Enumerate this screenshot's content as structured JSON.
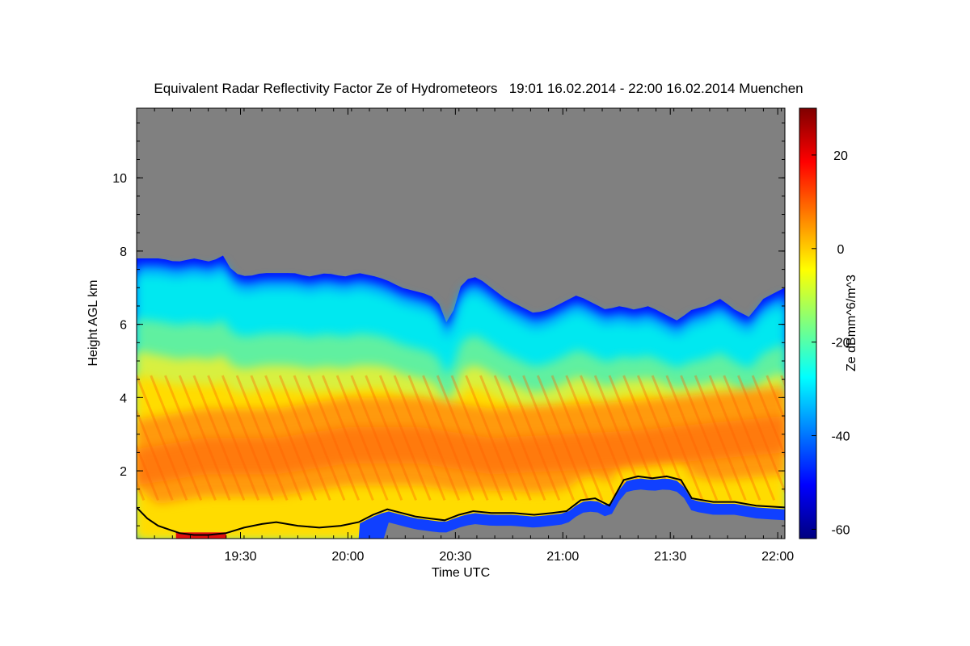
{
  "chart_data": {
    "type": "heatmap",
    "title": "Equivalent Radar Reflectivity Factor Ze of Hydrometeors   19:01 16.02.2014 - 22:00 16.02.2014 Muenchen",
    "xlabel": "Time UTC",
    "ylabel": "Height AGL km",
    "colorbar_label": "Ze dBmm^6/m^3",
    "x_range_minutes_utc": [
      1141,
      1322
    ],
    "y_range_km": [
      0.15,
      11.9
    ],
    "clim": [
      -62,
      30
    ],
    "x_ticks": [
      {
        "value": 1170,
        "label": "19:30"
      },
      {
        "value": 1200,
        "label": "20:00"
      },
      {
        "value": 1230,
        "label": "20:30"
      },
      {
        "value": 1260,
        "label": "21:00"
      },
      {
        "value": 1290,
        "label": "21:30"
      },
      {
        "value": 1320,
        "label": "22:00"
      }
    ],
    "y_ticks": [
      {
        "value": 2,
        "label": "2"
      },
      {
        "value": 4,
        "label": "4"
      },
      {
        "value": 6,
        "label": "6"
      },
      {
        "value": 8,
        "label": "8"
      },
      {
        "value": 10,
        "label": "10"
      }
    ],
    "colorbar_ticks": [
      {
        "value": 20,
        "label": "20"
      },
      {
        "value": 0,
        "label": "0"
      },
      {
        "value": -20,
        "label": "-20"
      },
      {
        "value": -40,
        "label": "-40"
      },
      {
        "value": -60,
        "label": "-60"
      }
    ],
    "colormap": [
      "#00007f",
      "#0000ff",
      "#007fff",
      "#00ffff",
      "#7fff7f",
      "#ffff00",
      "#ff7f00",
      "#ff0000",
      "#7f0000"
    ],
    "missing_color": "#808080",
    "echo_top_km": [
      [
        1141,
        7.8
      ],
      [
        1148,
        7.8
      ],
      [
        1152,
        7.7
      ],
      [
        1157,
        7.8
      ],
      [
        1162,
        7.7
      ],
      [
        1165,
        7.9
      ],
      [
        1168,
        7.4
      ],
      [
        1172,
        7.3
      ],
      [
        1176,
        7.4
      ],
      [
        1180,
        7.4
      ],
      [
        1185,
        7.4
      ],
      [
        1189,
        7.3
      ],
      [
        1194,
        7.4
      ],
      [
        1199,
        7.3
      ],
      [
        1203,
        7.4
      ],
      [
        1208,
        7.3
      ],
      [
        1211,
        7.2
      ],
      [
        1215,
        7.0
      ],
      [
        1219,
        6.9
      ],
      [
        1223,
        6.8
      ],
      [
        1226,
        6.5
      ],
      [
        1228,
        5.9
      ],
      [
        1232,
        7.2
      ],
      [
        1236,
        7.3
      ],
      [
        1240,
        7.0
      ],
      [
        1244,
        6.7
      ],
      [
        1248,
        6.5
      ],
      [
        1252,
        6.3
      ],
      [
        1256,
        6.4
      ],
      [
        1260,
        6.6
      ],
      [
        1264,
        6.8
      ],
      [
        1268,
        6.6
      ],
      [
        1272,
        6.4
      ],
      [
        1276,
        6.5
      ],
      [
        1280,
        6.4
      ],
      [
        1284,
        6.5
      ],
      [
        1288,
        6.3
      ],
      [
        1292,
        6.1
      ],
      [
        1296,
        6.4
      ],
      [
        1300,
        6.5
      ],
      [
        1304,
        6.7
      ],
      [
        1308,
        6.4
      ],
      [
        1312,
        6.2
      ],
      [
        1316,
        6.7
      ],
      [
        1322,
        7.0
      ]
    ],
    "base_layer_km": [
      [
        1141,
        1.0
      ],
      [
        1144,
        0.7
      ],
      [
        1147,
        0.5
      ],
      [
        1150,
        0.4
      ],
      [
        1153,
        0.3
      ],
      [
        1157,
        0.25
      ],
      [
        1161,
        0.25
      ],
      [
        1166,
        0.3
      ],
      [
        1171,
        0.45
      ],
      [
        1176,
        0.55
      ],
      [
        1180,
        0.6
      ],
      [
        1186,
        0.5
      ],
      [
        1192,
        0.45
      ],
      [
        1198,
        0.5
      ],
      [
        1203,
        0.6
      ],
      [
        1207,
        0.8
      ],
      [
        1211,
        0.95
      ],
      [
        1215,
        0.85
      ],
      [
        1219,
        0.75
      ],
      [
        1223,
        0.7
      ],
      [
        1227,
        0.65
      ],
      [
        1231,
        0.8
      ],
      [
        1235,
        0.9
      ],
      [
        1240,
        0.85
      ],
      [
        1246,
        0.85
      ],
      [
        1252,
        0.8
      ],
      [
        1257,
        0.85
      ],
      [
        1261,
        0.9
      ],
      [
        1265,
        1.2
      ],
      [
        1269,
        1.25
      ],
      [
        1273,
        1.05
      ],
      [
        1277,
        1.75
      ],
      [
        1281,
        1.85
      ],
      [
        1285,
        1.8
      ],
      [
        1289,
        1.85
      ],
      [
        1293,
        1.75
      ],
      [
        1296,
        1.25
      ],
      [
        1302,
        1.15
      ],
      [
        1308,
        1.15
      ],
      [
        1314,
        1.05
      ],
      [
        1322,
        1.0
      ]
    ],
    "high_ze_band_km": [
      [
        1141,
        2.0
      ],
      [
        1160,
        2.3
      ],
      [
        1180,
        2.3
      ],
      [
        1200,
        2.6
      ],
      [
        1220,
        2.6
      ],
      [
        1240,
        2.3
      ],
      [
        1260,
        2.4
      ],
      [
        1280,
        2.5
      ],
      [
        1300,
        2.7
      ],
      [
        1322,
        2.9
      ]
    ]
  }
}
